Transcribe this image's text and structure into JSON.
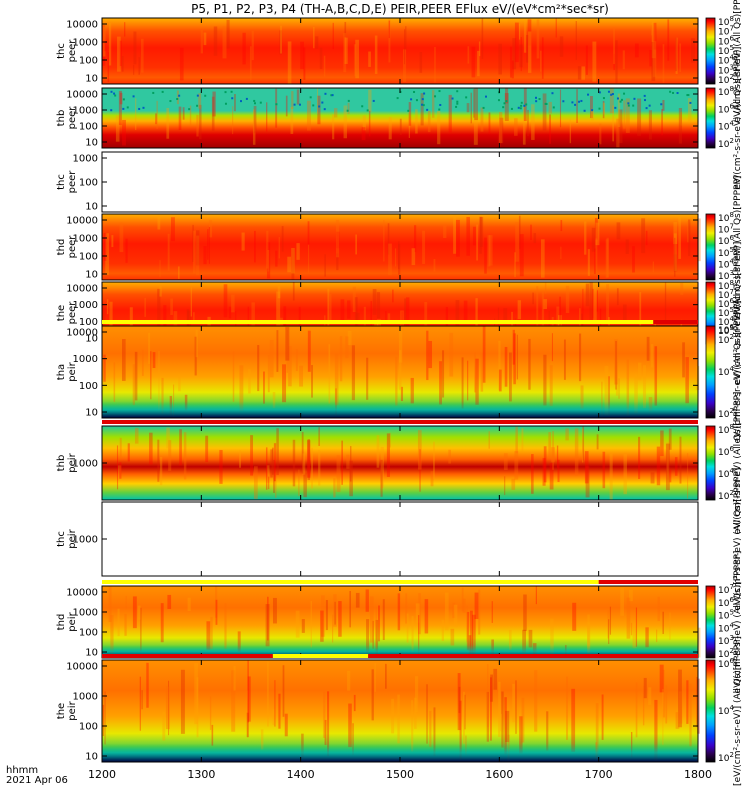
{
  "title": "P5, P1, P2, P3, P4 (TH-A,B,C,D,E) PEIR,PEER EFlux eV/(eV*cm²*sec*sr)",
  "footer": {
    "line1": "hhmm",
    "line2": "2021 Apr 06"
  },
  "colormap": [
    "#000000",
    "#2b0050",
    "#3a00c8",
    "#0040ff",
    "#00a0ff",
    "#00e0e0",
    "#00d060",
    "#90e000",
    "#f0f000",
    "#ffb000",
    "#ff5000",
    "#ff0000",
    "#b00000"
  ],
  "chart_data": {
    "type": "heatmap",
    "x_axis": {
      "label": "hhmm",
      "date": "2021 Apr 06",
      "range": [
        1200,
        1800
      ],
      "ticks": [
        "1200",
        "1300",
        "1400",
        "1500",
        "1600",
        "1700",
        "1800"
      ]
    },
    "panels": [
      {
        "id": "thc-peer",
        "ylabel": [
          "thc",
          "peer"
        ],
        "yticks": [
          "10000",
          "1000",
          "100",
          "10"
        ],
        "scale": "log",
        "empty": false,
        "colorbar": [
          "10^8",
          "10^7",
          "10^6",
          "10^5",
          "10^4",
          "10^3",
          "10^2"
        ],
        "colorbar_label": "eV/(cm²-s-sr-eV) (All Qs)[PPPPP]",
        "mode_bar": null
      },
      {
        "id": "thb-peer",
        "ylabel": [
          "thb",
          "peer"
        ],
        "yticks": [
          "10000",
          "1000",
          "100",
          "10"
        ],
        "scale": "log",
        "empty": false,
        "colorbar": [
          "10^8",
          "10^6",
          "10^4",
          "10^2"
        ],
        "colorbar_label": "eV/(cm²-s-sr-eV) (All Qs)[PPPPP]",
        "mode_bar": null
      },
      {
        "id": "thc-peer-2",
        "ylabel": [
          "thc",
          "peer"
        ],
        "yticks": [
          "1000",
          "100",
          "10"
        ],
        "scale": "log",
        "empty": true,
        "colorbar": [],
        "colorbar_label": "",
        "mode_bar": null
      },
      {
        "id": "thd-peer",
        "ylabel": [
          "thd",
          "peer"
        ],
        "yticks": [
          "10000",
          "1000",
          "100",
          "10"
        ],
        "scale": "log",
        "empty": false,
        "colorbar": [
          "10^8",
          "10^7",
          "10^6",
          "10^5",
          "10^4",
          "10^3"
        ],
        "colorbar_label": "eV/(cm²-s-sr-eV) (All Qs)[PPPPP]",
        "mode_bar": null
      },
      {
        "id": "the-peer",
        "ylabel": [
          "the",
          "peer"
        ],
        "yticks": [
          "10000",
          "1000",
          "100",
          "10"
        ],
        "scale": "log",
        "empty": false,
        "colorbar": [
          "10^8",
          "10^7",
          "10^6",
          "10^5",
          "10^4",
          "10^3",
          "10^2"
        ],
        "colorbar_label": "eV/(cm²-s-sr-eV) (All Qs)[PPPPP]",
        "mode_bar": null
      },
      {
        "id": "tha-peir",
        "ylabel": [
          "tha",
          "peir"
        ],
        "yticks": [
          "10000",
          "1000",
          "100",
          "10"
        ],
        "scale": "log",
        "empty": false,
        "colorbar": [
          "10^6",
          "10^4",
          "10^2"
        ],
        "colorbar_label": "eV/(cm²-s-sr-eV) (All Qs)[PPPPP]",
        "mode_bar": [
          {
            "from": 1200,
            "to": 1755,
            "color": "#ffff00"
          },
          {
            "from": 1755,
            "to": 1800,
            "color": "#e00000"
          }
        ]
      },
      {
        "id": "thb-peir",
        "ylabel": [
          "thb",
          "peir"
        ],
        "yticks": [
          "1000"
        ],
        "scale": "log",
        "empty": false,
        "colorbar": [
          "10^8",
          "10^6",
          "10^4",
          "10^2"
        ],
        "colorbar_label": "eV/(cm²-s-sr-eV) (All Qs)[PPPPP]",
        "mode_bar": [
          {
            "from": 1200,
            "to": 1800,
            "color": "#e00000"
          }
        ]
      },
      {
        "id": "thc-peir",
        "ylabel": [
          "thc",
          "peir"
        ],
        "yticks": [
          "1000"
        ],
        "scale": "log",
        "empty": true,
        "colorbar": [],
        "colorbar_label": "eV/(cm²-s-sr-eV) (All Qs)[PPPPP]",
        "mode_bar": null
      },
      {
        "id": "thd-peir",
        "ylabel": [
          "thd",
          "peir"
        ],
        "yticks": [
          "10000",
          "1000",
          "100",
          "10"
        ],
        "scale": "log",
        "empty": false,
        "colorbar": [
          "10^7",
          "10^6",
          "10^5",
          "10^4",
          "10^3",
          "10^2"
        ],
        "colorbar_label": "eV/(cm²-s-sr-eV) (All Qs)[PPPPP]",
        "mode_bar": [
          {
            "from": 1200,
            "to": 1700,
            "color": "#ffff00"
          },
          {
            "from": 1700,
            "to": 1800,
            "color": "#e00000"
          }
        ]
      },
      {
        "id": "the-peir",
        "ylabel": [
          "the",
          "peir"
        ],
        "yticks": [
          "10000",
          "1000",
          "100",
          "10"
        ],
        "scale": "log",
        "empty": false,
        "colorbar": [
          "10^6",
          "10^4",
          "10^2"
        ],
        "colorbar_label": "[eV/(cm²-s-sr-eV)] (All Qs)[PPPPP]",
        "mode_bar": [
          {
            "from": 1200,
            "to": 1372,
            "color": "#e00000"
          },
          {
            "from": 1372,
            "to": 1468,
            "color": "#ffff00"
          },
          {
            "from": 1468,
            "to": 1800,
            "color": "#e00000"
          }
        ]
      }
    ]
  }
}
